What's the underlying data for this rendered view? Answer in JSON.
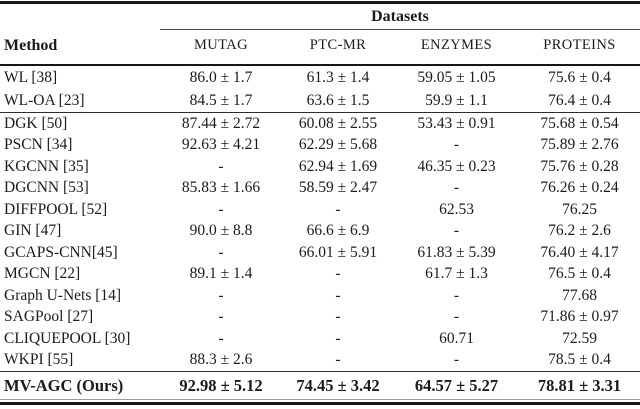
{
  "colors": {
    "text": "#1b1b1b",
    "rule_dark": "#161616",
    "rule_mid": "#2d2d2d",
    "background": "#ffffff"
  },
  "table": {
    "group_header": "Datasets",
    "columns": [
      "Method",
      "MUTAG",
      "PTC-MR",
      "ENZYMES",
      "PROTEINS"
    ],
    "sections": [
      {
        "rows": [
          {
            "method": "WL [38]",
            "values": [
              "86.0 ± 1.7",
              "61.3 ± 1.4",
              "59.05 ± 1.05",
              "75.6 ± 0.4"
            ]
          },
          {
            "method": "WL-OA [23]",
            "values": [
              "84.5 ± 1.7",
              "63.6 ± 1.5",
              "59.9 ± 1.1",
              "76.4 ± 0.4"
            ]
          }
        ]
      },
      {
        "rows": [
          {
            "method": "DGK [50]",
            "values": [
              "87.44 ± 2.72",
              "60.08 ± 2.55",
              "53.43 ± 0.91",
              "75.68 ± 0.54"
            ]
          },
          {
            "method": "PSCN [34]",
            "values": [
              "92.63 ± 4.21",
              "62.29 ± 5.68",
              "-",
              "75.89 ± 2.76"
            ]
          },
          {
            "method": "KGCNN [35]",
            "values": [
              "-",
              "62.94 ± 1.69",
              "46.35 ± 0.23",
              "75.76 ± 0.28"
            ]
          },
          {
            "method": "DGCNN [53]",
            "values": [
              "85.83 ± 1.66",
              "58.59 ± 2.47",
              "-",
              "76.26 ± 0.24"
            ]
          },
          {
            "method": "DIFFPOOL [52]",
            "values": [
              "-",
              "-",
              "62.53",
              "76.25"
            ]
          },
          {
            "method": "GIN [47]",
            "values": [
              "90.0 ± 8.8",
              "66.6 ± 6.9",
              "-",
              "76.2 ± 2.6"
            ]
          },
          {
            "method": "GCAPS-CNN[45]",
            "values": [
              "-",
              "66.01 ± 5.91",
              "61.83 ± 5.39",
              "76.40 ± 4.17"
            ]
          },
          {
            "method": "MGCN [22]",
            "values": [
              "89.1 ± 1.4",
              "-",
              "61.7 ± 1.3",
              "76.5 ± 0.4"
            ]
          },
          {
            "method": "Graph U-Nets [14]",
            "values": [
              "-",
              "-",
              "-",
              "77.68"
            ]
          },
          {
            "method": "SAGPool [27]",
            "values": [
              "-",
              "-",
              "-",
              "71.86 ± 0.97"
            ]
          },
          {
            "method": "CLIQUEPOOL [30]",
            "values": [
              "-",
              "-",
              "60.71",
              "72.59"
            ]
          },
          {
            "method": "WKPI [55]",
            "values": [
              "88.3 ± 2.6",
              "-",
              "-",
              "78.5 ± 0.4"
            ]
          }
        ]
      },
      {
        "rows": [
          {
            "method": "MV-AGC (Ours)",
            "bold": true,
            "values": [
              "92.98 ± 5.12",
              "74.45 ± 3.42",
              "64.57 ± 5.27",
              "78.81 ± 3.31"
            ]
          }
        ]
      }
    ]
  }
}
